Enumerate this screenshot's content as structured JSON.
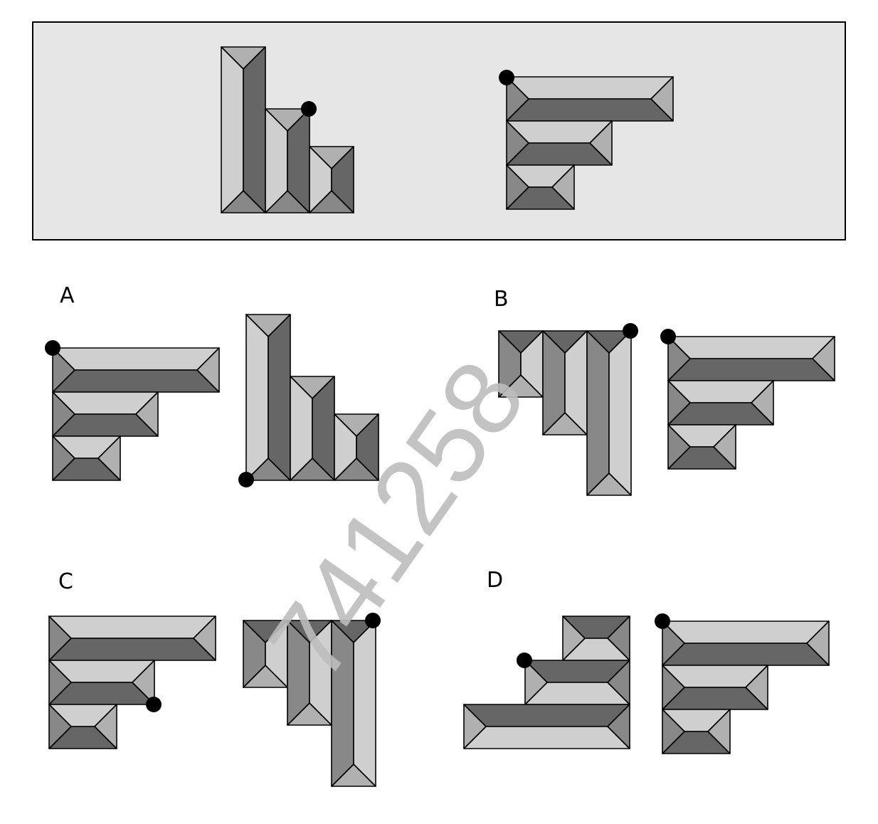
{
  "colors": {
    "light": "#cfcfcf",
    "mid": "#b0b0b0",
    "dark": "#666666",
    "medium_dark": "#888888",
    "panel": "#e6e6e6",
    "dot": "#000000",
    "watermark": "#bdbdbd"
  },
  "options": [
    {
      "key": "A",
      "label": "A"
    },
    {
      "key": "B",
      "label": "B"
    },
    {
      "key": "C",
      "label": "C"
    },
    {
      "key": "D",
      "label": "D"
    }
  ],
  "watermark": {
    "text": "741258"
  }
}
